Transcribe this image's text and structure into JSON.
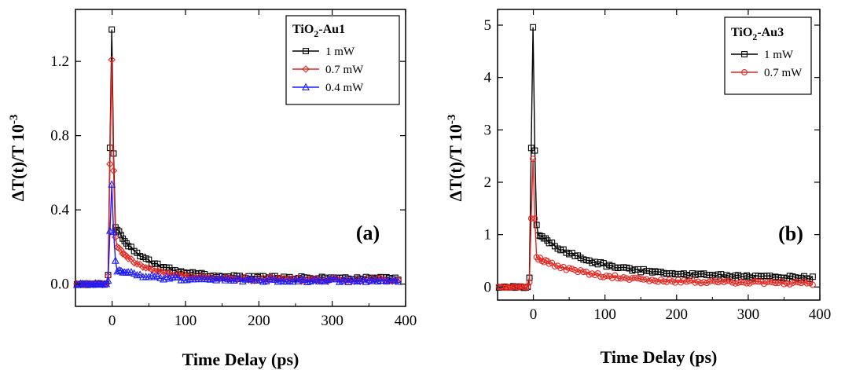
{
  "chart_data": [
    {
      "type": "line",
      "panel_label": "(a)",
      "legend_title": "TiO2-Au1",
      "xlabel": "Time Delay (ps)",
      "ylabel": "ΔT(t)/T 10-3",
      "xlim": [
        -50,
        400
      ],
      "ylim": [
        -0.12,
        1.48
      ],
      "xticks": [
        0,
        100,
        200,
        300,
        400
      ],
      "yticks": [
        0.0,
        0.4,
        0.8,
        1.2
      ],
      "ytick_labels": [
        "0.0",
        "0.4",
        "0.8",
        "1.2"
      ],
      "legend_position": "top-right",
      "series": [
        {
          "name": "1 mW",
          "color": "#000000",
          "marker": "square",
          "peak": 1.43,
          "tail_fast": 0.3,
          "tail_slow": 0.04,
          "tau": 40
        },
        {
          "name": "0.7 mW",
          "color": "#e8251f",
          "marker": "diamond",
          "peak": 1.26,
          "tail_fast": 0.2,
          "tail_slow": 0.03,
          "tau": 40
        },
        {
          "name": "0.4 mW",
          "color": "#1a1aff",
          "marker": "triangle",
          "peak": 0.56,
          "tail_fast": 0.06,
          "tail_slow": 0.025,
          "tau": 40
        }
      ]
    },
    {
      "type": "line",
      "panel_label": "(b)",
      "legend_title": "TiO2-Au3",
      "xlabel": "Time Delay (ps)",
      "ylabel": "ΔT(t)/T 10-3",
      "xlim": [
        -50,
        400
      ],
      "ylim": [
        -0.25,
        5.3
      ],
      "xticks": [
        0,
        100,
        200,
        300,
        400
      ],
      "yticks": [
        0,
        1,
        2,
        3,
        4,
        5
      ],
      "ytick_labels": [
        "0",
        "1",
        "2",
        "3",
        "4",
        "5"
      ],
      "legend_position": "top-right",
      "series": [
        {
          "name": "1 mW",
          "color": "#000000",
          "marker": "square",
          "peak": 5.17,
          "tail_fast": 0.85,
          "tail_slow": 0.24,
          "tau": 70
        },
        {
          "name": "0.7 mW",
          "color": "#e8251f",
          "marker": "circle",
          "peak": 2.55,
          "tail_fast": 0.5,
          "tail_slow": 0.1,
          "tau": 70
        }
      ]
    }
  ]
}
